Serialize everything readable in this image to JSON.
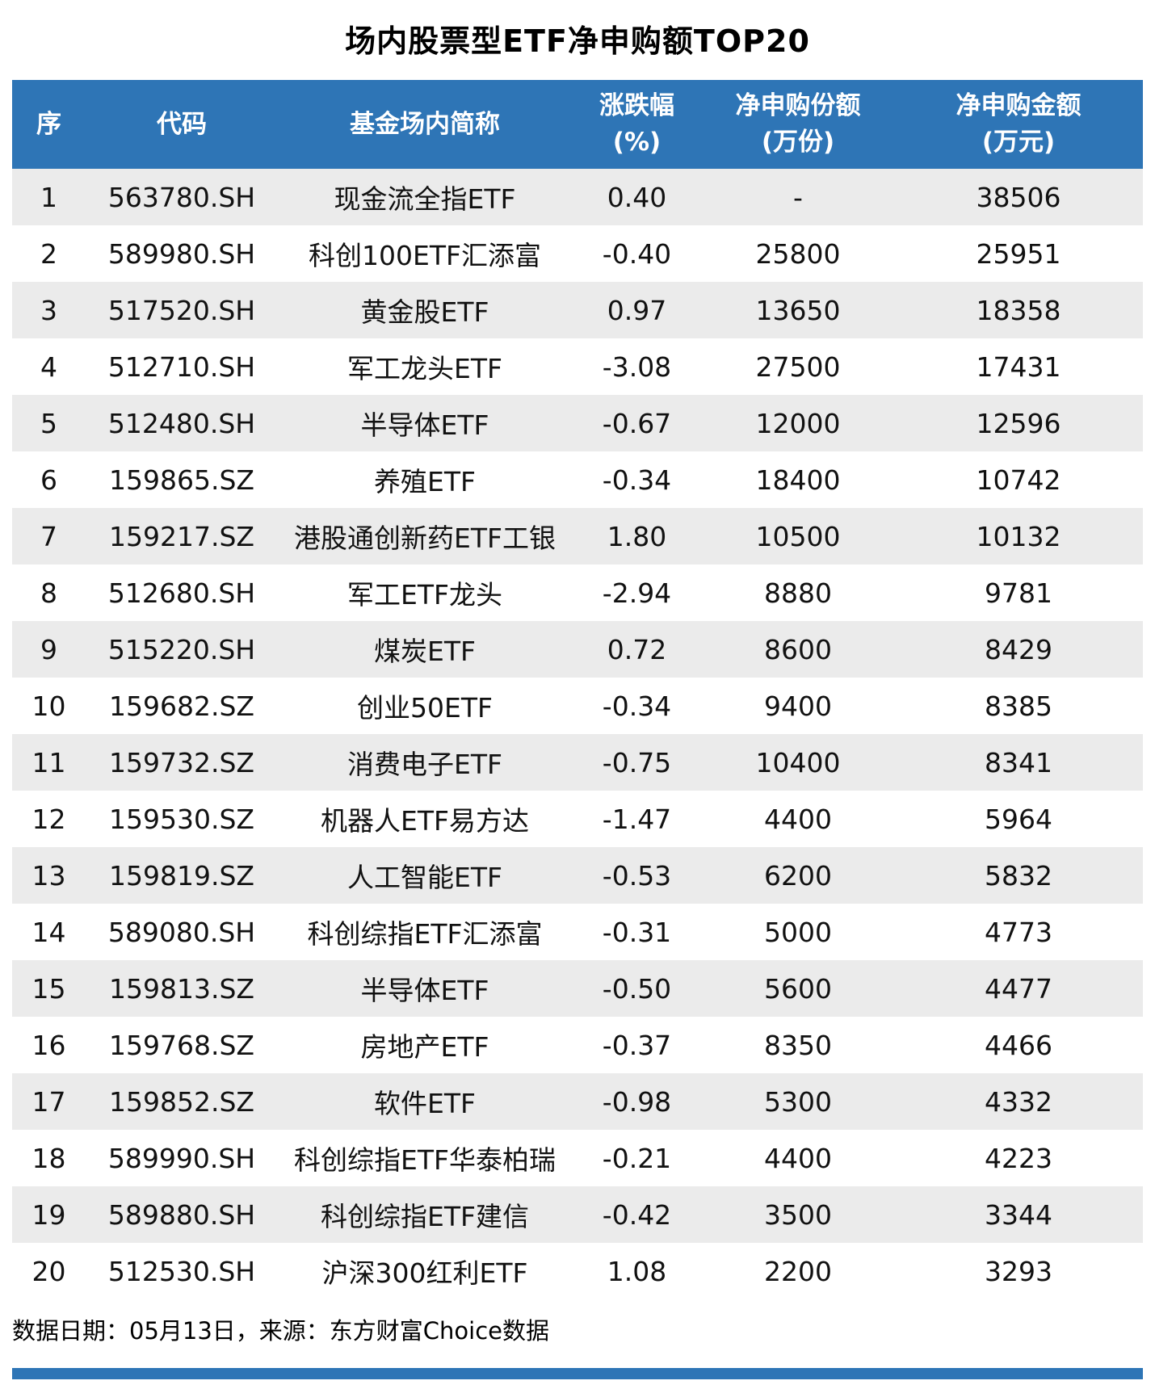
{
  "chart_data": {
    "type": "table",
    "title": "场内股票型ETF净申购额TOP20",
    "columns": [
      {
        "label": "序",
        "sub": ""
      },
      {
        "label": "代码",
        "sub": ""
      },
      {
        "label": "基金场内简称",
        "sub": ""
      },
      {
        "label": "涨跌幅",
        "sub": "(%)"
      },
      {
        "label": "净申购份额",
        "sub": "(万份)"
      },
      {
        "label": "净申购金额",
        "sub": "(万元)"
      }
    ],
    "rows": [
      [
        "1",
        "563780.SH",
        "现金流全指ETF",
        "0.40",
        "-",
        "38506"
      ],
      [
        "2",
        "589980.SH",
        "科创100ETF汇添富",
        "-0.40",
        "25800",
        "25951"
      ],
      [
        "3",
        "517520.SH",
        "黄金股ETF",
        "0.97",
        "13650",
        "18358"
      ],
      [
        "4",
        "512710.SH",
        "军工龙头ETF",
        "-3.08",
        "27500",
        "17431"
      ],
      [
        "5",
        "512480.SH",
        "半导体ETF",
        "-0.67",
        "12000",
        "12596"
      ],
      [
        "6",
        "159865.SZ",
        "养殖ETF",
        "-0.34",
        "18400",
        "10742"
      ],
      [
        "7",
        "159217.SZ",
        "港股通创新药ETF工银",
        "1.80",
        "10500",
        "10132"
      ],
      [
        "8",
        "512680.SH",
        "军工ETF龙头",
        "-2.94",
        "8880",
        "9781"
      ],
      [
        "9",
        "515220.SH",
        "煤炭ETF",
        "0.72",
        "8600",
        "8429"
      ],
      [
        "10",
        "159682.SZ",
        "创业50ETF",
        "-0.34",
        "9400",
        "8385"
      ],
      [
        "11",
        "159732.SZ",
        "消费电子ETF",
        "-0.75",
        "10400",
        "8341"
      ],
      [
        "12",
        "159530.SZ",
        "机器人ETF易方达",
        "-1.47",
        "4400",
        "5964"
      ],
      [
        "13",
        "159819.SZ",
        "人工智能ETF",
        "-0.53",
        "6200",
        "5832"
      ],
      [
        "14",
        "589080.SH",
        "科创综指ETF汇添富",
        "-0.31",
        "5000",
        "4773"
      ],
      [
        "15",
        "159813.SZ",
        "半导体ETF",
        "-0.50",
        "5600",
        "4477"
      ],
      [
        "16",
        "159768.SZ",
        "房地产ETF",
        "-0.37",
        "8350",
        "4466"
      ],
      [
        "17",
        "159852.SZ",
        "软件ETF",
        "-0.98",
        "5300",
        "4332"
      ],
      [
        "18",
        "589990.SH",
        "科创综指ETF华泰柏瑞",
        "-0.21",
        "4400",
        "4223"
      ],
      [
        "19",
        "589880.SH",
        "科创综指ETF建信",
        "-0.42",
        "3500",
        "3344"
      ],
      [
        "20",
        "512530.SH",
        "沪深300红利ETF",
        "1.08",
        "2200",
        "3293"
      ]
    ],
    "footer_note": "数据日期：05月13日，来源：东方财富Choice数据"
  },
  "colors": {
    "header_bg": "#2E75B6",
    "header_text": "#FFFFFF",
    "row_alt_bg": "#EBEBEB",
    "row_bg": "#FFFFFF",
    "accent_bar": "#2E75B6",
    "body_text": "#111111"
  }
}
